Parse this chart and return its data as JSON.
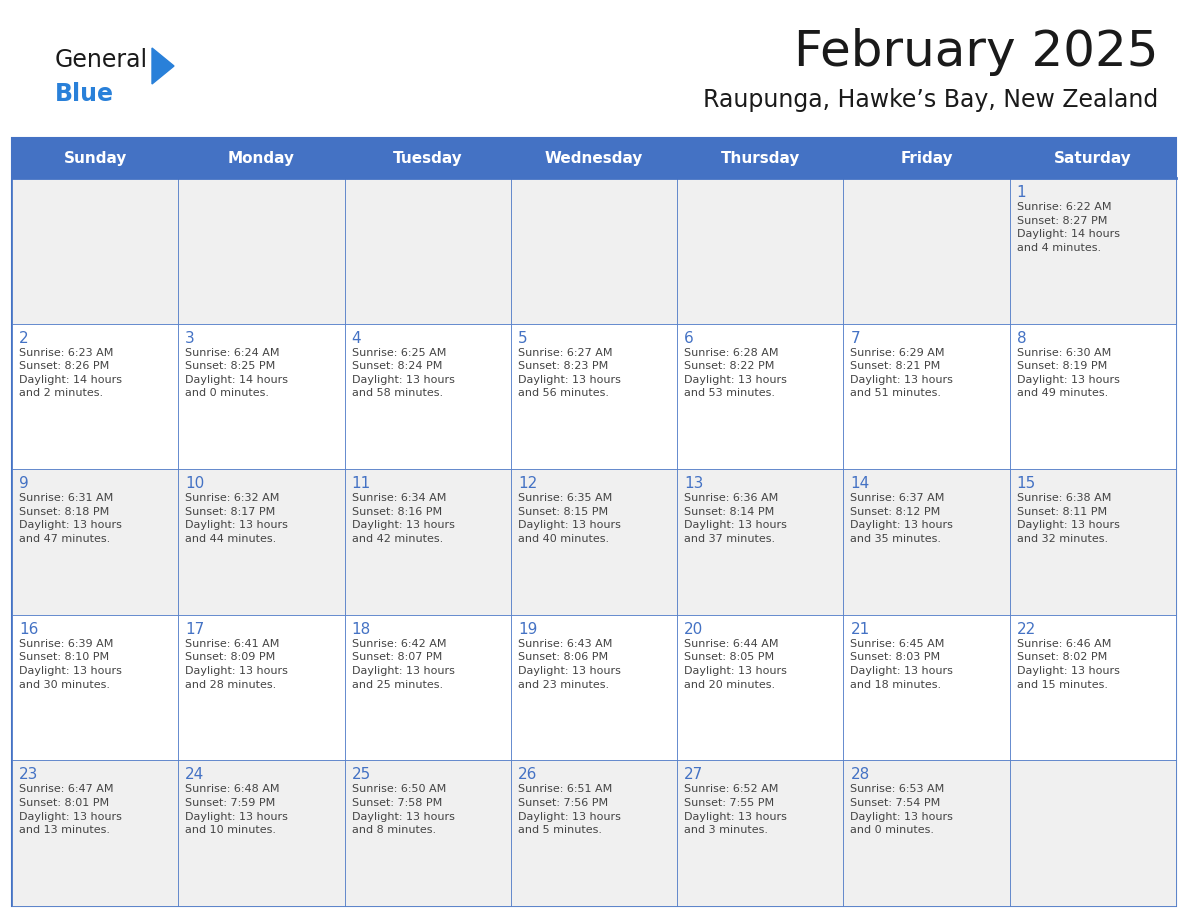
{
  "title": "February 2025",
  "subtitle": "Raupunga, Hawke’s Bay, New Zealand",
  "header_bg": "#4472C4",
  "header_text_color": "#FFFFFF",
  "cell_bg_odd": "#F0F0F0",
  "cell_bg_even": "#FFFFFF",
  "border_color": "#4472C4",
  "day_headers": [
    "Sunday",
    "Monday",
    "Tuesday",
    "Wednesday",
    "Thursday",
    "Friday",
    "Saturday"
  ],
  "title_color": "#1a1a1a",
  "subtitle_color": "#1a1a1a",
  "logo_general_color": "#1a1a1a",
  "logo_blue_color": "#2980D9",
  "cell_text_color": "#444444",
  "day_number_color": "#4472C4",
  "weeks": [
    [
      {
        "day": null,
        "info": null
      },
      {
        "day": null,
        "info": null
      },
      {
        "day": null,
        "info": null
      },
      {
        "day": null,
        "info": null
      },
      {
        "day": null,
        "info": null
      },
      {
        "day": null,
        "info": null
      },
      {
        "day": 1,
        "info": "Sunrise: 6:22 AM\nSunset: 8:27 PM\nDaylight: 14 hours\nand 4 minutes."
      }
    ],
    [
      {
        "day": 2,
        "info": "Sunrise: 6:23 AM\nSunset: 8:26 PM\nDaylight: 14 hours\nand 2 minutes."
      },
      {
        "day": 3,
        "info": "Sunrise: 6:24 AM\nSunset: 8:25 PM\nDaylight: 14 hours\nand 0 minutes."
      },
      {
        "day": 4,
        "info": "Sunrise: 6:25 AM\nSunset: 8:24 PM\nDaylight: 13 hours\nand 58 minutes."
      },
      {
        "day": 5,
        "info": "Sunrise: 6:27 AM\nSunset: 8:23 PM\nDaylight: 13 hours\nand 56 minutes."
      },
      {
        "day": 6,
        "info": "Sunrise: 6:28 AM\nSunset: 8:22 PM\nDaylight: 13 hours\nand 53 minutes."
      },
      {
        "day": 7,
        "info": "Sunrise: 6:29 AM\nSunset: 8:21 PM\nDaylight: 13 hours\nand 51 minutes."
      },
      {
        "day": 8,
        "info": "Sunrise: 6:30 AM\nSunset: 8:19 PM\nDaylight: 13 hours\nand 49 minutes."
      }
    ],
    [
      {
        "day": 9,
        "info": "Sunrise: 6:31 AM\nSunset: 8:18 PM\nDaylight: 13 hours\nand 47 minutes."
      },
      {
        "day": 10,
        "info": "Sunrise: 6:32 AM\nSunset: 8:17 PM\nDaylight: 13 hours\nand 44 minutes."
      },
      {
        "day": 11,
        "info": "Sunrise: 6:34 AM\nSunset: 8:16 PM\nDaylight: 13 hours\nand 42 minutes."
      },
      {
        "day": 12,
        "info": "Sunrise: 6:35 AM\nSunset: 8:15 PM\nDaylight: 13 hours\nand 40 minutes."
      },
      {
        "day": 13,
        "info": "Sunrise: 6:36 AM\nSunset: 8:14 PM\nDaylight: 13 hours\nand 37 minutes."
      },
      {
        "day": 14,
        "info": "Sunrise: 6:37 AM\nSunset: 8:12 PM\nDaylight: 13 hours\nand 35 minutes."
      },
      {
        "day": 15,
        "info": "Sunrise: 6:38 AM\nSunset: 8:11 PM\nDaylight: 13 hours\nand 32 minutes."
      }
    ],
    [
      {
        "day": 16,
        "info": "Sunrise: 6:39 AM\nSunset: 8:10 PM\nDaylight: 13 hours\nand 30 minutes."
      },
      {
        "day": 17,
        "info": "Sunrise: 6:41 AM\nSunset: 8:09 PM\nDaylight: 13 hours\nand 28 minutes."
      },
      {
        "day": 18,
        "info": "Sunrise: 6:42 AM\nSunset: 8:07 PM\nDaylight: 13 hours\nand 25 minutes."
      },
      {
        "day": 19,
        "info": "Sunrise: 6:43 AM\nSunset: 8:06 PM\nDaylight: 13 hours\nand 23 minutes."
      },
      {
        "day": 20,
        "info": "Sunrise: 6:44 AM\nSunset: 8:05 PM\nDaylight: 13 hours\nand 20 minutes."
      },
      {
        "day": 21,
        "info": "Sunrise: 6:45 AM\nSunset: 8:03 PM\nDaylight: 13 hours\nand 18 minutes."
      },
      {
        "day": 22,
        "info": "Sunrise: 6:46 AM\nSunset: 8:02 PM\nDaylight: 13 hours\nand 15 minutes."
      }
    ],
    [
      {
        "day": 23,
        "info": "Sunrise: 6:47 AM\nSunset: 8:01 PM\nDaylight: 13 hours\nand 13 minutes."
      },
      {
        "day": 24,
        "info": "Sunrise: 6:48 AM\nSunset: 7:59 PM\nDaylight: 13 hours\nand 10 minutes."
      },
      {
        "day": 25,
        "info": "Sunrise: 6:50 AM\nSunset: 7:58 PM\nDaylight: 13 hours\nand 8 minutes."
      },
      {
        "day": 26,
        "info": "Sunrise: 6:51 AM\nSunset: 7:56 PM\nDaylight: 13 hours\nand 5 minutes."
      },
      {
        "day": 27,
        "info": "Sunrise: 6:52 AM\nSunset: 7:55 PM\nDaylight: 13 hours\nand 3 minutes."
      },
      {
        "day": 28,
        "info": "Sunrise: 6:53 AM\nSunset: 7:54 PM\nDaylight: 13 hours\nand 0 minutes."
      },
      {
        "day": null,
        "info": null
      }
    ]
  ]
}
